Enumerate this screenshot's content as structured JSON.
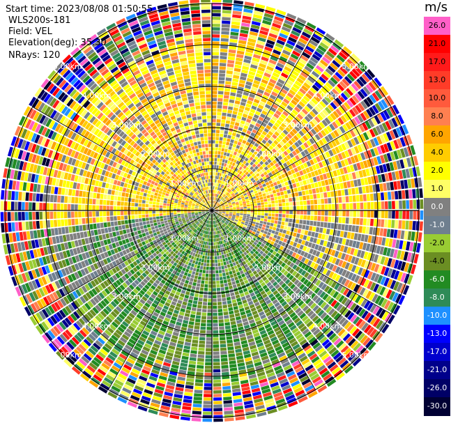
{
  "header": {
    "start_time": "Start time: 2023/08/08 01:50:55",
    "station": "WLS200s-181",
    "field": "Field: VEL",
    "elevation": "Elevation(deg): 35.30",
    "nrays": "NRays: 120"
  },
  "chart_data": {
    "type": "heatmap",
    "projection": "polar (PPI radar scan)",
    "field": "VEL",
    "nrays": 120,
    "elevation_deg": 35.3,
    "units": "m/s",
    "range_ring_labels": [
      "1.00km",
      "2.00km",
      "3.00km",
      "4.00km",
      "5.00km"
    ],
    "range_rings_km": [
      1,
      2,
      3,
      4,
      5
    ],
    "spoke_angles_deg": [
      0,
      30,
      60,
      90,
      120,
      150,
      180,
      210,
      240,
      270,
      300,
      330
    ],
    "colorbar": {
      "unit_label": "m/s",
      "levels": [
        {
          "label": "26.0",
          "color": "#ff5fc8"
        },
        {
          "label": "21.0",
          "color": "#ff0000"
        },
        {
          "label": "17.0",
          "color": "#ff1a1a"
        },
        {
          "label": "13.0",
          "color": "#ff3c28"
        },
        {
          "label": "10.0",
          "color": "#ff5a3c"
        },
        {
          "label": "8.0",
          "color": "#ff8050"
        },
        {
          "label": "6.0",
          "color": "#ffa500"
        },
        {
          "label": "4.0",
          "color": "#ffcc00"
        },
        {
          "label": "2.0",
          "color": "#ffff00"
        },
        {
          "label": "1.0",
          "color": "#ffff66"
        },
        {
          "label": "0.0",
          "color": "#808080"
        },
        {
          "label": "-1.0",
          "color": "#6f7f8f"
        },
        {
          "label": "-2.0",
          "color": "#99cc33"
        },
        {
          "label": "-4.0",
          "color": "#6b8e23"
        },
        {
          "label": "-6.0",
          "color": "#228b22"
        },
        {
          "label": "-8.0",
          "color": "#2e8b57"
        },
        {
          "label": "-10.0",
          "color": "#1e90ff"
        },
        {
          "label": "-13.0",
          "color": "#0000ff"
        },
        {
          "label": "-17.0",
          "color": "#0000cd"
        },
        {
          "label": "-21.0",
          "color": "#00008b"
        },
        {
          "label": "-26.0",
          "color": "#000066"
        },
        {
          "label": "-30.0",
          "color": "#000033"
        }
      ]
    },
    "velocity_pattern": {
      "north_sector": "positive 2 to 8 m/s (yellow/orange)",
      "south_sector": "negative -2 to -8 m/s (green)",
      "outer_range": "noisy, all values"
    }
  }
}
